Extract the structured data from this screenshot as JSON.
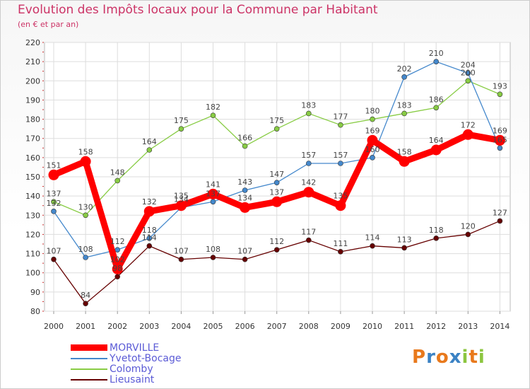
{
  "chart_data": {
    "type": "line",
    "title": "Evolution des Impôts locaux pour la Commune par Habitant",
    "subtitle": "(en € et par an)",
    "xlabel": "",
    "ylabel": "",
    "x": [
      "2000",
      "2001",
      "2002",
      "2003",
      "2004",
      "2005",
      "2006",
      "2007",
      "2008",
      "2009",
      "2010",
      "2011",
      "2012",
      "2013",
      "2014"
    ],
    "ylim": [
      80,
      220
    ],
    "yticks": [
      80,
      90,
      100,
      110,
      120,
      130,
      140,
      150,
      160,
      170,
      180,
      190,
      200,
      210,
      220
    ],
    "grid": true,
    "legend_position": "bottom-left",
    "series": [
      {
        "name": "MORVILLE",
        "color": "#ff0000",
        "emphasis": true,
        "values": [
          151,
          158,
          102,
          132,
          135,
          141,
          134,
          137,
          142,
          135,
          169,
          158,
          164,
          172,
          169
        ]
      },
      {
        "name": "Yvetot-Bocage",
        "color": "#4488cc",
        "values": [
          132,
          108,
          112,
          118,
          134,
          137,
          143,
          147,
          157,
          157,
          160,
          202,
          210,
          204,
          165
        ]
      },
      {
        "name": "Colomby",
        "color": "#88cc44",
        "values": [
          137,
          130,
          148,
          164,
          175,
          182,
          166,
          175,
          183,
          177,
          180,
          183,
          186,
          200,
          193
        ]
      },
      {
        "name": "Lieusaint",
        "color": "#660000",
        "values": [
          107,
          84,
          98,
          114,
          107,
          108,
          107,
          112,
          117,
          111,
          114,
          113,
          118,
          120,
          127
        ]
      }
    ]
  },
  "logo": {
    "text": "Proxiti"
  }
}
